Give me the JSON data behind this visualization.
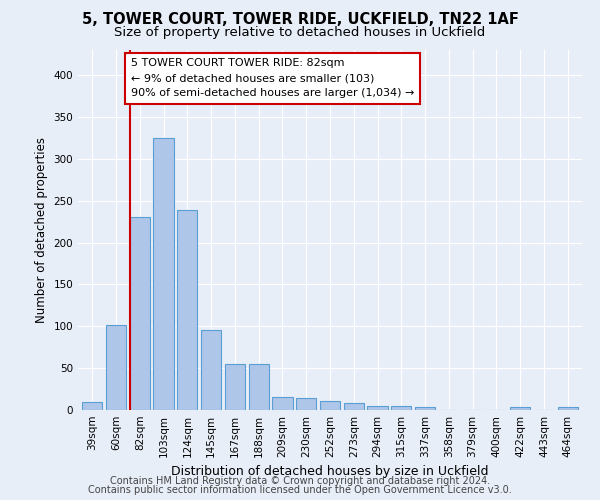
{
  "title1": "5, TOWER COURT, TOWER RIDE, UCKFIELD, TN22 1AF",
  "title2": "Size of property relative to detached houses in Uckfield",
  "xlabel": "Distribution of detached houses by size in Uckfield",
  "ylabel": "Number of detached properties",
  "footer1": "Contains HM Land Registry data © Crown copyright and database right 2024.",
  "footer2": "Contains public sector information licensed under the Open Government Licence v3.0.",
  "categories": [
    "39sqm",
    "60sqm",
    "82sqm",
    "103sqm",
    "124sqm",
    "145sqm",
    "167sqm",
    "188sqm",
    "209sqm",
    "230sqm",
    "252sqm",
    "273sqm",
    "294sqm",
    "315sqm",
    "337sqm",
    "358sqm",
    "379sqm",
    "400sqm",
    "422sqm",
    "443sqm",
    "464sqm"
  ],
  "values": [
    10,
    102,
    230,
    325,
    239,
    96,
    55,
    55,
    15,
    14,
    11,
    8,
    5,
    5,
    4,
    0,
    0,
    0,
    3,
    0,
    3
  ],
  "bar_color": "#aec6e8",
  "bar_edge_color": "#5a9fd4",
  "marker_idx": 2,
  "marker_label1": "5 TOWER COURT TOWER RIDE: 82sqm",
  "marker_label2": "← 9% of detached houses are smaller (103)",
  "marker_label3": "90% of semi-detached houses are larger (1,034) →",
  "marker_line_color": "#cc0000",
  "annotation_box_color": "#cc0000",
  "ylim": [
    0,
    430
  ],
  "yticks": [
    0,
    50,
    100,
    150,
    200,
    250,
    300,
    350,
    400
  ],
  "background_color": "#e8eef8",
  "plot_bg_color": "#e8eef8",
  "grid_color": "#ffffff",
  "title_fontsize": 10.5,
  "subtitle_fontsize": 9.5,
  "axis_label_fontsize": 8.5,
  "tick_fontsize": 7.5,
  "footer_fontsize": 7.0,
  "annotation_fontsize": 8.0
}
